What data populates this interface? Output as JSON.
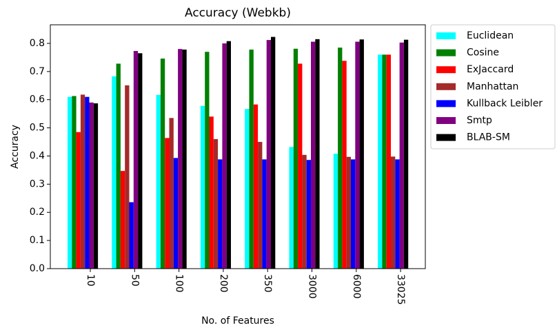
{
  "chart_data": {
    "type": "bar",
    "title": "Accuracy (Webkb)",
    "x_label": "No. of Features",
    "y_label": "Accuracy",
    "categories": [
      "10",
      "50",
      "100",
      "200",
      "350",
      "3000",
      "6000",
      "33025"
    ],
    "series": [
      {
        "name": "Euclidean",
        "color": "#00ffff",
        "values": [
          0.61,
          0.683,
          0.617,
          0.578,
          0.567,
          0.432,
          0.408,
          0.76
        ]
      },
      {
        "name": "Cosine",
        "color": "#008000",
        "values": [
          0.613,
          0.728,
          0.746,
          0.77,
          0.778,
          0.781,
          0.785,
          0.76
        ]
      },
      {
        "name": "ExJaccard",
        "color": "#ff0000",
        "values": [
          0.485,
          0.347,
          0.464,
          0.54,
          0.583,
          0.728,
          0.738,
          0.76
        ]
      },
      {
        "name": "Manhattan",
        "color": "#a52a2a",
        "values": [
          0.618,
          0.651,
          0.535,
          0.46,
          0.45,
          0.404,
          0.397,
          0.398
        ]
      },
      {
        "name": "Kullback Leibler",
        "color": "#0000ff",
        "values": [
          0.61,
          0.236,
          0.393,
          0.388,
          0.388,
          0.386,
          0.388,
          0.388
        ]
      },
      {
        "name": "Smtp",
        "color": "#800080",
        "values": [
          0.59,
          0.773,
          0.78,
          0.8,
          0.812,
          0.806,
          0.806,
          0.803
        ]
      },
      {
        "name": "BLAB-SM",
        "color": "#000000",
        "values": [
          0.587,
          0.765,
          0.778,
          0.808,
          0.823,
          0.815,
          0.814,
          0.813
        ]
      }
    ],
    "ylim": [
      0,
      0.866
    ],
    "yticks": [
      {
        "value": 0,
        "label": "0.0"
      },
      0.1,
      0.2,
      0.3,
      0.4,
      0.5,
      0.6,
      0.7,
      0.8
    ],
    "legend": "outside right"
  }
}
